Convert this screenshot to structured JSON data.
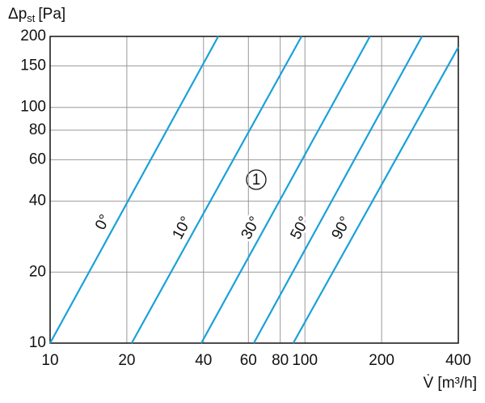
{
  "chart_data": {
    "type": "line",
    "xlog": true,
    "ylog": true,
    "grid": true,
    "ylabel": "Δp",
    "ylabel_sub": "st",
    "ylabel_unit": "[Pa]",
    "xlabel": "V̇ [m³/h]",
    "annotation": "1",
    "xlim": [
      10,
      400
    ],
    "ylim": [
      10,
      200
    ],
    "xticks": [
      10,
      20,
      40,
      60,
      80,
      100,
      200,
      400
    ],
    "yticks": [
      10,
      20,
      40,
      60,
      80,
      100,
      150,
      200
    ],
    "series": [
      {
        "name": "0°",
        "color": "#1ba1d8",
        "x": [
          10,
          45.7
        ],
        "values": [
          10,
          200
        ]
      },
      {
        "name": "10°",
        "color": "#1ba1d8",
        "x": [
          20.9,
          97
        ],
        "values": [
          10,
          200
        ]
      },
      {
        "name": "30°",
        "color": "#1ba1d8",
        "x": [
          39.2,
          180
        ],
        "values": [
          10,
          200
        ]
      },
      {
        "name": "50°",
        "color": "#1ba1d8",
        "x": [
          63,
          288
        ],
        "values": [
          10,
          200
        ]
      },
      {
        "name": "90°",
        "color": "#1ba1d8",
        "x": [
          90,
          400
        ],
        "values": [
          10,
          180
        ]
      }
    ]
  }
}
